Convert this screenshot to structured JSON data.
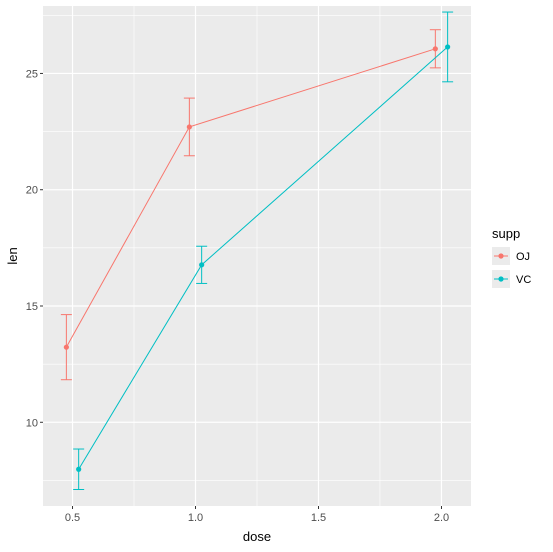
{
  "chart_data": {
    "type": "line",
    "xlabel": "dose",
    "ylabel": "len",
    "xlim": [
      0.38,
      2.12
    ],
    "ylim": [
      6.4,
      27.9
    ],
    "x_ticks": [
      0.5,
      1.0,
      1.5,
      2.0
    ],
    "x_tick_labels": [
      "0.5",
      "1.0",
      "1.5",
      "2.0"
    ],
    "y_ticks": [
      10,
      15,
      20,
      25
    ],
    "y_tick_labels": [
      "10",
      "15",
      "20",
      "25"
    ],
    "grid": true,
    "legend": {
      "title": "supp",
      "position": "right"
    },
    "series": [
      {
        "name": "OJ",
        "color": "#F8766D",
        "x": [
          0.5,
          1.0,
          2.0
        ],
        "y": [
          13.23,
          22.7,
          26.06
        ],
        "ymin": [
          11.83,
          21.46,
          25.24
        ],
        "ymax": [
          14.63,
          23.94,
          26.88
        ]
      },
      {
        "name": "VC",
        "color": "#00BFC4",
        "x": [
          0.5,
          1.0,
          2.0
        ],
        "y": [
          7.98,
          16.77,
          26.14
        ],
        "ymin": [
          7.11,
          15.97,
          24.64
        ],
        "ymax": [
          8.85,
          17.57,
          27.64
        ]
      }
    ]
  }
}
